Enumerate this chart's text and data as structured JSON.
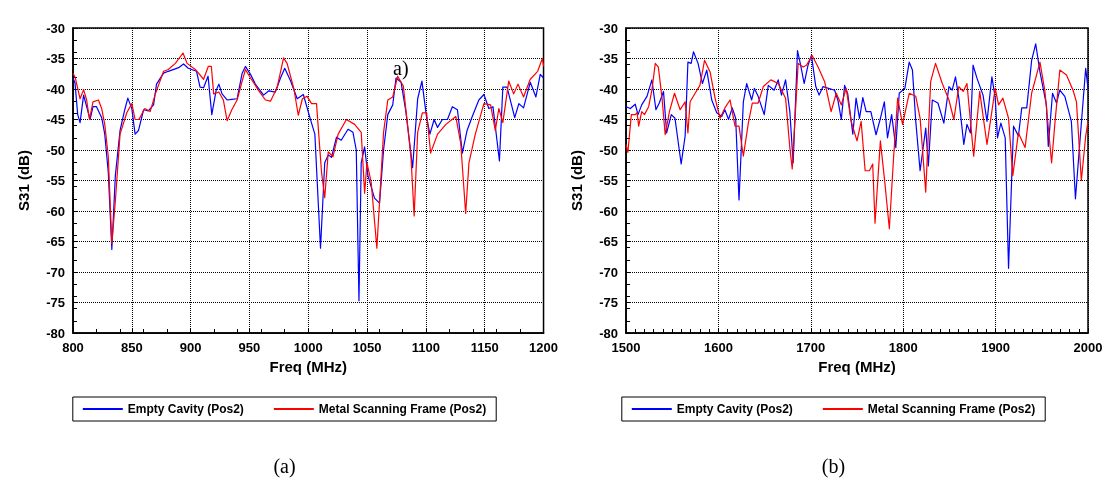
{
  "chart_data": [
    {
      "type": "line",
      "xlabel": "Freq (MHz)",
      "ylabel": "S31 (dB)",
      "subtitle": "(a)",
      "annotations": [
        "a)"
      ],
      "xlim": [
        800,
        1200
      ],
      "xticks": [
        800,
        850,
        900,
        950,
        1000,
        1050,
        1100,
        1150,
        1200
      ],
      "ylim": [
        -80,
        -30
      ],
      "yticks": [
        -80,
        -75,
        -70,
        -65,
        -60,
        -55,
        -50,
        -45,
        -40,
        -35,
        -30
      ],
      "grid": true,
      "legend": "bottom",
      "marker": "none",
      "line_style": "solid",
      "series": [
        {
          "name": "Empty Cavity (Pos2)",
          "color": "#0000ff",
          "x": [
            800,
            801.7,
            804,
            806,
            809,
            811.6,
            814.5,
            817,
            820,
            824.4,
            827,
            830,
            833,
            836,
            840,
            844,
            846.6,
            850,
            852.8,
            855.7,
            860,
            864,
            868.5,
            871,
            877,
            881,
            889.8,
            894,
            898,
            905,
            908,
            911,
            914.8,
            918,
            921.6,
            924,
            926.7,
            931,
            935,
            939.5,
            943.8,
            946.6,
            950.9,
            955,
            962,
            966.5,
            972,
            976.4,
            980,
            985,
            990.6,
            995.8,
            1001.4,
            1005.6,
            1010.4,
            1014,
            1017,
            1019.7,
            1024,
            1028,
            1033.8,
            1038,
            1040.8,
            1043.1,
            1045,
            1047.9,
            1050.7,
            1056.3,
            1060.6,
            1064,
            1067.6,
            1071.8,
            1074.6,
            1078.9,
            1083,
            1088.7,
            1093,
            1096.6,
            1100.6,
            1103.4,
            1107,
            1109.9,
            1114,
            1118.3,
            1122.5,
            1126.8,
            1131,
            1135,
            1139.4,
            1145,
            1149.3,
            1153.5,
            1157,
            1162.5,
            1165.4,
            1169,
            1175.5,
            1179,
            1183,
            1188.7,
            1193.5,
            1197.2,
            1200
          ],
          "values": [
            -38.2,
            -39,
            -44.2,
            -45.5,
            -41,
            -42.9,
            -45,
            -42.9,
            -42.9,
            -44.7,
            -47.4,
            -53.7,
            -66.3,
            -54.2,
            -46.8,
            -43.4,
            -41.5,
            -43.2,
            -47.4,
            -46.8,
            -43.4,
            -43.6,
            -42.6,
            -39.2,
            -37.4,
            -37.1,
            -36.5,
            -35.9,
            -36.6,
            -37.1,
            -39.7,
            -39.8,
            -37.9,
            -44.2,
            -40.3,
            -39.2,
            -40.8,
            -41.8,
            -41.7,
            -41.6,
            -37.4,
            -36.3,
            -37.6,
            -39.2,
            -41,
            -40.3,
            -40.5,
            -38.2,
            -36.6,
            -38.7,
            -41.6,
            -40.9,
            -44.7,
            -47.4,
            -66.1,
            -52.1,
            -50.8,
            -51.2,
            -47.9,
            -48.4,
            -46.6,
            -47.1,
            -50,
            -74.7,
            -52.1,
            -49.5,
            -54.2,
            -57.9,
            -58.7,
            -50,
            -44.2,
            -42.6,
            -38.2,
            -38.9,
            -43.7,
            -52.9,
            -41.6,
            -38.7,
            -44.7,
            -47.4,
            -45,
            -46.3,
            -45,
            -45,
            -42.9,
            -43.4,
            -50.5,
            -46.8,
            -44.5,
            -41.8,
            -40.9,
            -43.2,
            -42.9,
            -51.8,
            -39.7,
            -39.7,
            -44.7,
            -42.4,
            -43.1,
            -38.9,
            -41.3,
            -37.6,
            -38.2
          ]
        },
        {
          "name": "Metal Scanning Frame (Pos2)",
          "color": "#ff0000",
          "x": [
            800,
            802,
            806,
            809,
            811.6,
            814,
            817,
            821.6,
            824.4,
            827,
            830,
            833,
            836,
            840,
            845.7,
            850,
            852.8,
            856,
            861,
            865.6,
            870,
            877,
            881,
            887,
            893.5,
            897,
            904,
            911,
            915,
            917.6,
            919.6,
            924,
            927.8,
            931,
            935,
            939.5,
            943.8,
            946.6,
            950.9,
            958,
            963.6,
            967.9,
            973.6,
            979,
            982,
            987.8,
            991.5,
            995,
            999,
            1002.8,
            1007,
            1011.3,
            1014,
            1017,
            1021,
            1025.4,
            1032.4,
            1039.4,
            1045,
            1047.9,
            1049.9,
            1053.5,
            1058.3,
            1064,
            1067.6,
            1071.8,
            1076,
            1080.8,
            1087.3,
            1090,
            1093,
            1097,
            1100.6,
            1104,
            1109.9,
            1117,
            1125.4,
            1129.6,
            1133.8,
            1136.6,
            1142,
            1149.3,
            1155,
            1159,
            1162,
            1165.4,
            1170.4,
            1174.6,
            1178.3,
            1183,
            1188.7,
            1195,
            1199,
            1200
          ],
          "values": [
            -37.4,
            -38.2,
            -41.6,
            -40.1,
            -41.8,
            -45,
            -42.1,
            -41.8,
            -43.2,
            -45.8,
            -51.1,
            -65.3,
            -58.4,
            -47.4,
            -43.9,
            -42.4,
            -45,
            -45,
            -43.2,
            -43.7,
            -40.8,
            -37.1,
            -36.8,
            -35.8,
            -34.1,
            -35.8,
            -36.8,
            -38.4,
            -36.3,
            -36.3,
            -40.8,
            -40.5,
            -41.8,
            -45.2,
            -43.4,
            -41.8,
            -38.7,
            -36.8,
            -38.2,
            -40.3,
            -41.8,
            -42,
            -39.7,
            -34.9,
            -35.8,
            -40,
            -44.3,
            -41.6,
            -41.2,
            -42.4,
            -42.4,
            -53.7,
            -57.8,
            -50.3,
            -51.1,
            -47.4,
            -45,
            -45.8,
            -47.1,
            -57.1,
            -52.1,
            -55.3,
            -66.1,
            -47.1,
            -41.8,
            -41.3,
            -37.9,
            -39.5,
            -51.1,
            -60.8,
            -47.1,
            -43.9,
            -43.9,
            -50.5,
            -47.4,
            -45.8,
            -44.5,
            -48.9,
            -60.4,
            -52.1,
            -47.4,
            -42.4,
            -42.6,
            -46.8,
            -43.2,
            -45.5,
            -38.7,
            -40.8,
            -39.2,
            -41.3,
            -38.4,
            -37.1,
            -35,
            -36.3
          ]
        }
      ]
    },
    {
      "type": "line",
      "xlabel": "Freq (MHz)",
      "ylabel": "S31 (dB)",
      "subtitle": "(b)",
      "xlim": [
        1500,
        2000
      ],
      "xticks": [
        1500,
        1600,
        1700,
        1800,
        1900,
        2000
      ],
      "ylim": [
        -80,
        -30
      ],
      "yticks": [
        -80,
        -75,
        -70,
        -65,
        -60,
        -55,
        -50,
        -45,
        -40,
        -35,
        -30
      ],
      "grid": true,
      "legend": "bottom",
      "marker": "none",
      "line_style": "solid",
      "series": [
        {
          "name": "Empty Cavity (Pos2)",
          "color": "#0000ff",
          "x": [
            1500,
            1504.7,
            1510,
            1513,
            1517,
            1522.7,
            1528,
            1532.4,
            1536,
            1540.6,
            1544,
            1549,
            1553,
            1559.7,
            1564,
            1567,
            1570.5,
            1573,
            1578,
            1582.7,
            1587.4,
            1592.8,
            1598.2,
            1603.6,
            1607,
            1611,
            1615,
            1618.7,
            1622.3,
            1627,
            1630.6,
            1636,
            1639,
            1643,
            1649.6,
            1654,
            1660.4,
            1664.7,
            1668.3,
            1672.7,
            1677.3,
            1680.9,
            1685.6,
            1689,
            1692.8,
            1697,
            1700.7,
            1705.4,
            1709,
            1713.3,
            1725.8,
            1729.4,
            1733,
            1736.6,
            1740,
            1745.5,
            1749,
            1752.7,
            1756.3,
            1759.9,
            1765,
            1770.6,
            1775.3,
            1779.6,
            1783,
            1787.5,
            1792,
            1795.7,
            1801.8,
            1806.5,
            1810,
            1813.6,
            1818.3,
            1824.4,
            1827.2,
            1831.5,
            1837.6,
            1844,
            1849.5,
            1853,
            1856.6,
            1860.2,
            1865.6,
            1869,
            1872.8,
            1875.6,
            1880,
            1886.4,
            1890.7,
            1896,
            1899.6,
            1902,
            1905.7,
            1910.4,
            1914,
            1919.4,
            1924.7,
            1928.3,
            1933.7,
            1939,
            1943.4,
            1948,
            1955,
            1957,
            1961.6,
            1965.9,
            1969.5,
            1974.9,
            1982,
            1986.4,
            1991,
            1997.5,
            2000
          ],
          "values": [
            -42.9,
            -43.2,
            -42.5,
            -44.2,
            -42.6,
            -41.2,
            -38.5,
            -43.4,
            -42.3,
            -40.4,
            -47.2,
            -44.2,
            -44.8,
            -52.3,
            -47.7,
            -35.6,
            -35.8,
            -33.9,
            -35.8,
            -39.1,
            -36.9,
            -41.8,
            -43.9,
            -44.5,
            -43.4,
            -45,
            -43.1,
            -44.8,
            -58.2,
            -42.1,
            -39.1,
            -41.8,
            -39.9,
            -41.2,
            -44.2,
            -39.4,
            -40.2,
            -38.5,
            -41,
            -38.5,
            -43.7,
            -52.1,
            -33.7,
            -36.1,
            -39.1,
            -36.1,
            -34.5,
            -39.6,
            -41,
            -39.6,
            -40.2,
            -41.9,
            -45,
            -39.4,
            -40.8,
            -47.4,
            -41.5,
            -44.8,
            -41.4,
            -43.7,
            -43.7,
            -47.5,
            -44.8,
            -42.1,
            -48,
            -44.2,
            -49.6,
            -40.7,
            -39.9,
            -35.6,
            -36.9,
            -45.3,
            -53.4,
            -46.4,
            -52.6,
            -41.8,
            -42.3,
            -45.6,
            -39.6,
            -40.2,
            -38,
            -41.5,
            -49.1,
            -45.8,
            -47.2,
            -36.1,
            -38.3,
            -41,
            -45.3,
            -38,
            -41.5,
            -48,
            -45.6,
            -48,
            -69.4,
            -46.1,
            -47.7,
            -43.1,
            -43.1,
            -35.3,
            -32.6,
            -37.2,
            -42.6,
            -49.4,
            -40.7,
            -42.3,
            -40.2,
            -41.2,
            -45.3,
            -58,
            -49.1,
            -36.6,
            -39.9
          ]
        },
        {
          "name": "Metal Scanning Frame (Pos2)",
          "color": "#ff0000",
          "x": [
            1500,
            1502,
            1505.8,
            1510,
            1512,
            1513.7,
            1517,
            1520,
            1524.5,
            1528,
            1531.7,
            1535,
            1539,
            1542.4,
            1547,
            1552.5,
            1558.6,
            1564,
            1567,
            1569.4,
            1574.8,
            1580,
            1585,
            1591,
            1596.4,
            1601.8,
            1607,
            1612.6,
            1618,
            1622.3,
            1627,
            1632.4,
            1636.7,
            1643,
            1648.6,
            1656.8,
            1664.7,
            1672.7,
            1677.3,
            1679.9,
            1686.3,
            1691.7,
            1695.3,
            1701.4,
            1707.9,
            1715,
            1722,
            1727.6,
            1733,
            1738.3,
            1743.7,
            1750,
            1754.5,
            1758.8,
            1763.4,
            1767,
            1769.5,
            1775.3,
            1780.3,
            1785,
            1789.6,
            1794,
            1799.3,
            1806.5,
            1813.6,
            1818.3,
            1824.4,
            1829.7,
            1835,
            1842.3,
            1849.5,
            1854.8,
            1860.2,
            1864.9,
            1869,
            1876.3,
            1882.8,
            1890.7,
            1899.6,
            1903.2,
            1907.9,
            1914,
            1918.6,
            1924.7,
            1931.9,
            1939,
            1948,
            1953.4,
            1960.6,
            1964.2,
            1969.5,
            1976.7,
            1983.8,
            1987.5,
            1992.8,
            1997.5,
            2000
          ],
          "values": [
            -49.1,
            -50.4,
            -44.2,
            -44.2,
            -43.9,
            -46.1,
            -43.7,
            -44.2,
            -42.9,
            -40.2,
            -35.8,
            -36.4,
            -41.5,
            -47.5,
            -43.7,
            -40.7,
            -43.4,
            -42.1,
            -47.2,
            -42.1,
            -40.7,
            -39.4,
            -35.3,
            -37.2,
            -41.5,
            -44.8,
            -43.1,
            -41.8,
            -46.1,
            -46.1,
            -51,
            -45.6,
            -42.3,
            -42.3,
            -39.6,
            -38.5,
            -39.1,
            -41.5,
            -49.6,
            -53.1,
            -35.8,
            -36.4,
            -36.1,
            -34.5,
            -36.4,
            -38.8,
            -43.7,
            -40.7,
            -42.6,
            -39.9,
            -45.3,
            -48.5,
            -45.3,
            -53.4,
            -53.4,
            -52.3,
            -62,
            -48.5,
            -55.6,
            -62.9,
            -51.2,
            -41.5,
            -45.8,
            -40.7,
            -41.2,
            -44.8,
            -56.9,
            -38.8,
            -35.8,
            -39.1,
            -41.8,
            -45,
            -39.6,
            -40.4,
            -39.1,
            -51,
            -40.4,
            -49.1,
            -39.9,
            -42.6,
            -41.5,
            -44.8,
            -54.2,
            -47.2,
            -49.6,
            -40.7,
            -35.6,
            -40.4,
            -52.1,
            -45.6,
            -36.9,
            -37.7,
            -40.2,
            -42.1,
            -55,
            -47.7,
            -45.3
          ]
        }
      ]
    }
  ]
}
